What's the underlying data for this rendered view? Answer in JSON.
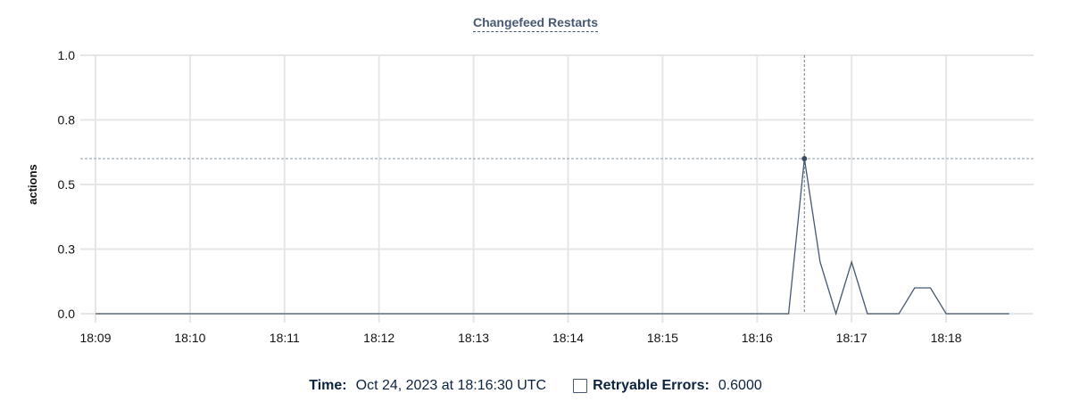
{
  "chart_data": {
    "type": "line",
    "title": "Changefeed Restarts",
    "ylabel": "actions",
    "xlabel": "",
    "ylim": [
      0,
      1.0
    ],
    "yticks": [
      "0.0",
      "0.3",
      "0.5",
      "0.8",
      "1.0"
    ],
    "ytick_values": [
      0,
      0.25,
      0.5,
      0.75,
      1.0
    ],
    "xticks": [
      "18:09",
      "18:10",
      "18:11",
      "18:12",
      "18:13",
      "18:14",
      "18:15",
      "18:16",
      "18:17",
      "18:18"
    ],
    "grid": true,
    "series": [
      {
        "name": "Retryable Errors",
        "color": "#475872",
        "points": [
          [
            "18:09:00",
            0
          ],
          [
            "18:16:20",
            0
          ],
          [
            "18:16:30",
            0.6
          ],
          [
            "18:16:40",
            0.2
          ],
          [
            "18:16:50",
            0
          ],
          [
            "18:17:00",
            0.2
          ],
          [
            "18:17:10",
            0
          ],
          [
            "18:17:30",
            0
          ],
          [
            "18:17:40",
            0.1
          ],
          [
            "18:17:50",
            0.1
          ],
          [
            "18:18:00",
            0
          ],
          [
            "18:18:40",
            0
          ]
        ]
      }
    ],
    "hover": {
      "time": "18:16:30",
      "value": 0.6
    }
  },
  "legend": {
    "time_label": "Time:",
    "time_value": "Oct 24, 2023 at 18:16:30 UTC",
    "series_label": "Retryable Errors:",
    "series_value": "0.6000"
  }
}
